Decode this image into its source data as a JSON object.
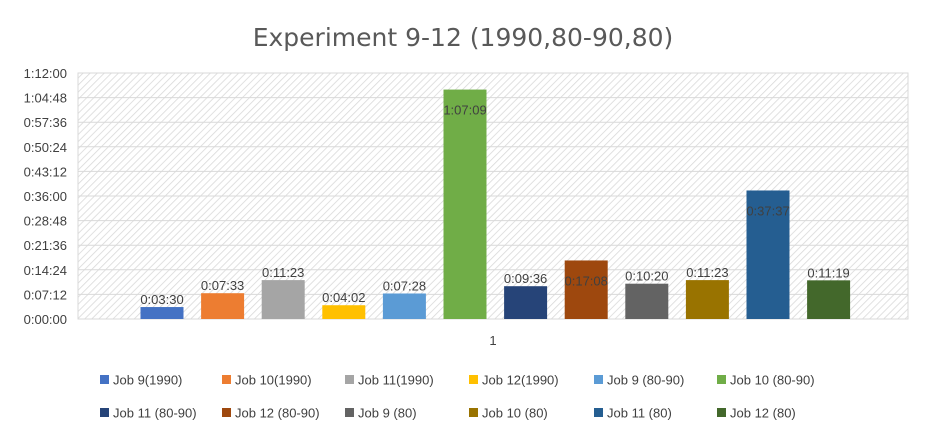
{
  "chart_data": {
    "type": "bar",
    "title": "Experiment 9-12 (1990,80-90,80)",
    "categories": [
      "1"
    ],
    "y_tick_labels": [
      "0:00:00",
      "0:07:12",
      "0:14:24",
      "0:21:36",
      "0:28:48",
      "0:36:00",
      "0:43:12",
      "0:50:24",
      "0:57:36",
      "1:04:48",
      "1:12:00"
    ],
    "y_tick_seconds": [
      0,
      432,
      864,
      1296,
      1728,
      2160,
      2592,
      3024,
      3456,
      3888,
      4320
    ],
    "ylim_seconds": [
      0,
      4320
    ],
    "grid": true,
    "legend_position": "bottom",
    "series": [
      {
        "name": "Job 9(1990)",
        "label": "0:03:30",
        "seconds": 210,
        "color": "#4472C4"
      },
      {
        "name": "Job 10(1990)",
        "label": "0:07:33",
        "seconds": 453,
        "color": "#ED7D31"
      },
      {
        "name": "Job 11(1990)",
        "label": "0:11:23",
        "seconds": 683,
        "color": "#A5A5A5"
      },
      {
        "name": "Job 12(1990)",
        "label": "0:04:02",
        "seconds": 242,
        "color": "#FFC000"
      },
      {
        "name": "Job 9 (80-90)",
        "label": "0:07:28",
        "seconds": 448,
        "color": "#5B9BD5"
      },
      {
        "name": "Job 10 (80-90)",
        "label": "1:07:09",
        "seconds": 4029,
        "color": "#70AD47"
      },
      {
        "name": "Job 11 (80-90)",
        "label": "0:09:36",
        "seconds": 576,
        "color": "#264478"
      },
      {
        "name": "Job 12 (80-90)",
        "label": "0:17:08",
        "seconds": 1028,
        "color": "#9E480E"
      },
      {
        "name": "Job 9 (80)",
        "label": "0:10:20",
        "seconds": 620,
        "color": "#636363"
      },
      {
        "name": "Job 10 (80)",
        "label": "0:11:23",
        "seconds": 683,
        "color": "#997300"
      },
      {
        "name": "Job 11 (80)",
        "label": "0:37:37",
        "seconds": 2257,
        "color": "#255E91"
      },
      {
        "name": "Job 12 (80)",
        "label": "0:11:19",
        "seconds": 679,
        "color": "#43682B"
      }
    ]
  }
}
